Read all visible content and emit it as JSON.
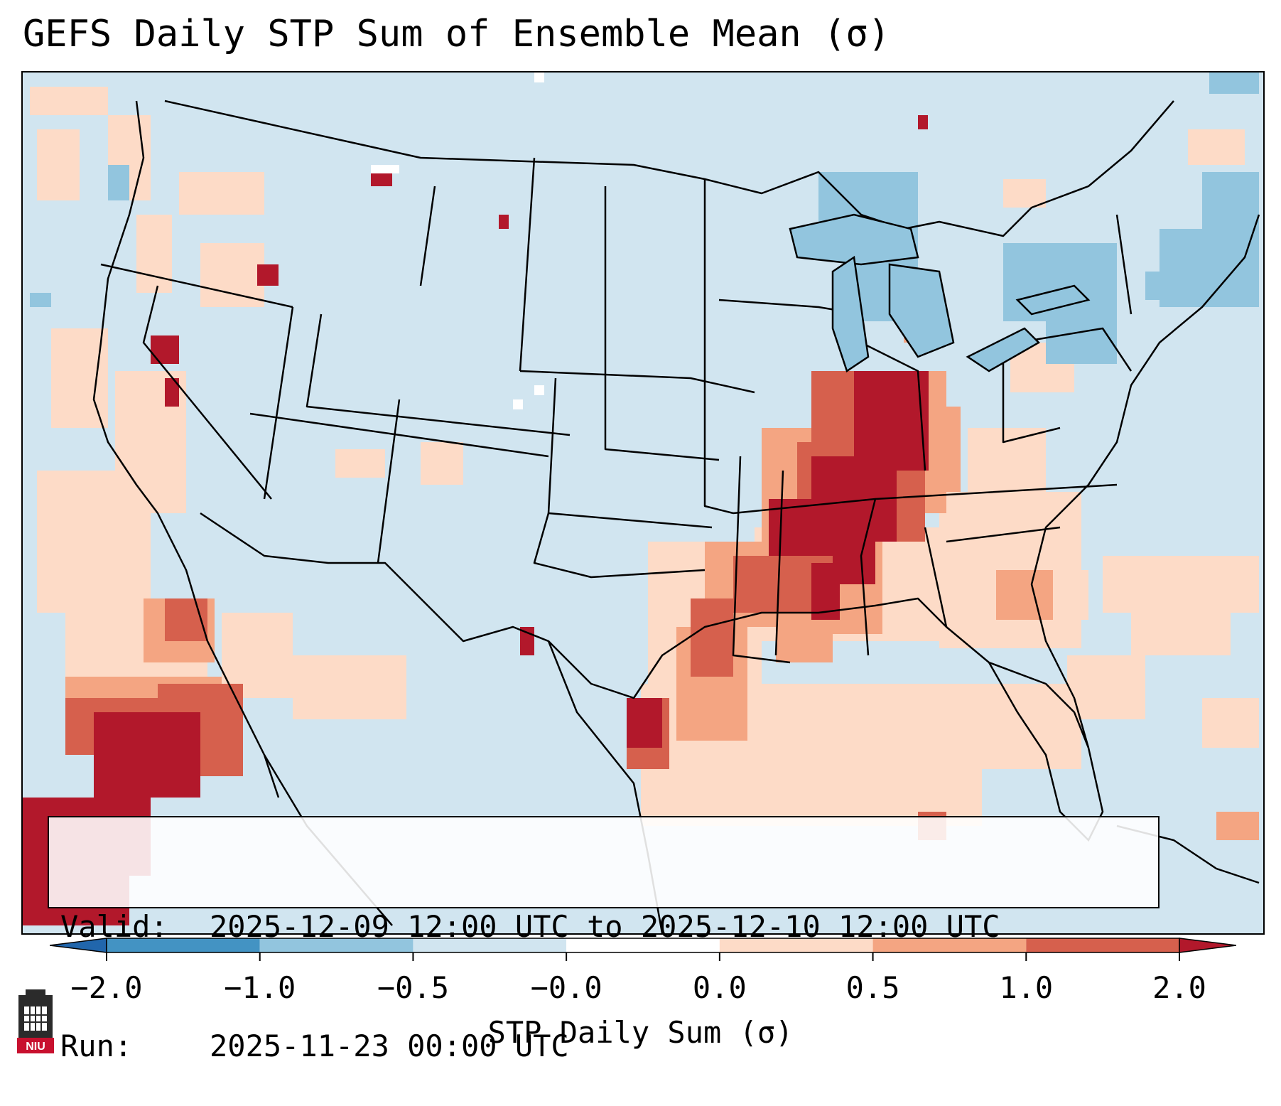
{
  "title": "GEFS Daily STP Sum of Ensemble Mean (σ)",
  "info": {
    "valid_label": "Valid:",
    "valid_value": "2025-12-09 12:00 UTC to 2025-12-10 12:00 UTC",
    "run_label": "Run:",
    "run_value": "2025-11-23 00:00 UTC"
  },
  "colorbar": {
    "label": "STP Daily Sum (σ)",
    "ticks": [
      "−2.0",
      "−1.0",
      "−0.5",
      "−0.0",
      "0.0",
      "0.5",
      "1.0",
      "2.0"
    ],
    "colors": [
      "#4393c3",
      "#92c5de",
      "#d1e5f0",
      "#ffffff",
      "#fddbc7",
      "#f4a582",
      "#d6604d",
      "#b2182b"
    ],
    "extend_low": "#2166ac",
    "extend_high": "#b2182b"
  },
  "map": {
    "background_color": "#d1e5f0",
    "region": "Continental United States"
  },
  "logo": {
    "text": "NIU"
  }
}
